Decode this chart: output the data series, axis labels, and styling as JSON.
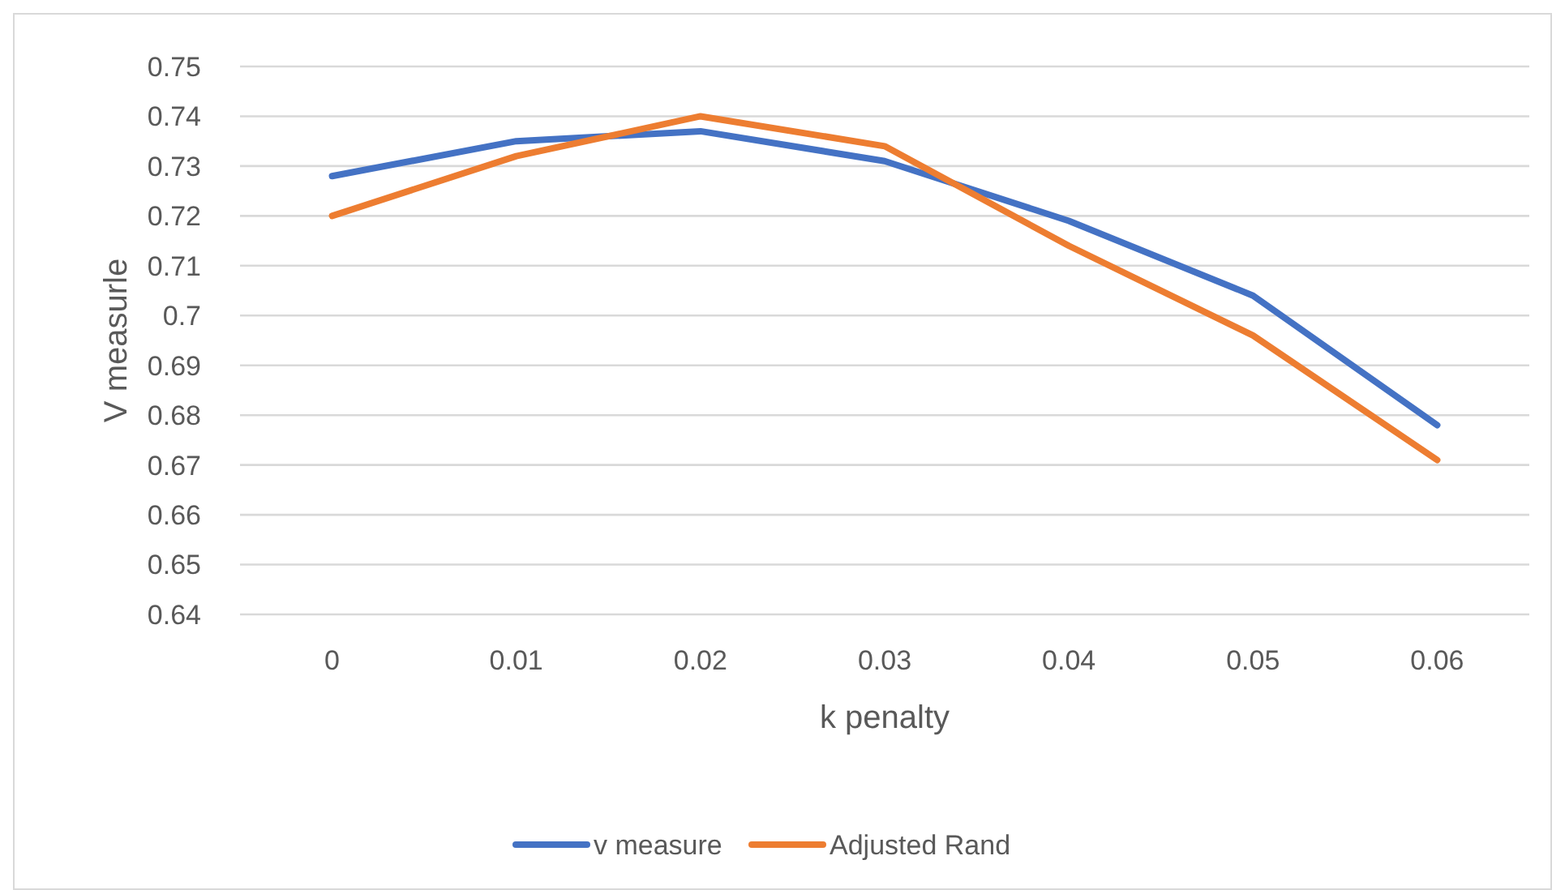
{
  "chart_data": {
    "type": "line",
    "xlabel": "k penalty",
    "ylabel": "V measurle",
    "categories": [
      "0",
      "0.01",
      "0.02",
      "0.03",
      "0.04",
      "0.05",
      "0.06"
    ],
    "series": [
      {
        "name": "v measure",
        "color": "#4472c4",
        "values": [
          0.728,
          0.735,
          0.737,
          0.731,
          0.719,
          0.704,
          0.678
        ]
      },
      {
        "name": "Adjusted Rand",
        "color": "#ed7d31",
        "values": [
          0.72,
          0.732,
          0.74,
          0.734,
          0.714,
          0.696,
          0.671
        ]
      }
    ],
    "ylim": [
      0.64,
      0.75
    ],
    "yticks": [
      0.64,
      0.65,
      0.66,
      0.67,
      0.68,
      0.69,
      {
        "value": 0.7,
        "label": "0.7"
      },
      0.71,
      0.72,
      0.73,
      0.74,
      0.75
    ],
    "grid": "y",
    "legend": "bottom",
    "marker": "none",
    "line_style": "solid"
  }
}
